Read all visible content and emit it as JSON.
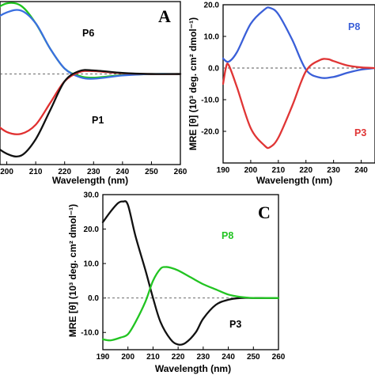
{
  "chart_data": [
    {
      "panel": "A",
      "type": "line",
      "xlabel": "Wavelength (nm)",
      "ylabel": "",
      "xlim": [
        190,
        260
      ],
      "ylim": [
        -25,
        20
      ],
      "x_ticks": [
        "200",
        "210",
        "220",
        "230",
        "240",
        "250",
        "260"
      ],
      "y_ticks": [],
      "zero_line": true,
      "series": [
        {
          "name": "P6",
          "color": "#1fc41f",
          "x": [
            190,
            195,
            200,
            205,
            210,
            215,
            220,
            225,
            230,
            240,
            250,
            260
          ],
          "y": [
            12,
            17,
            19.5,
            18.8,
            14,
            7,
            1.5,
            -0.5,
            -1,
            -0.3,
            0,
            0
          ]
        },
        {
          "name": "",
          "color": "#3a6fe0",
          "x": [
            190,
            195,
            200,
            205,
            210,
            215,
            220,
            225,
            230,
            240,
            250,
            260
          ],
          "y": [
            10,
            14.5,
            17,
            17.5,
            14,
            7,
            1.5,
            -0.8,
            -1.3,
            -0.4,
            0,
            0
          ]
        },
        {
          "name": "",
          "color": "#e03030",
          "x": [
            190,
            195,
            200,
            205,
            210,
            215,
            220,
            225,
            230,
            240,
            250,
            260
          ],
          "y": [
            -9,
            -13,
            -16,
            -16.5,
            -14,
            -8,
            -2,
            0.5,
            0.8,
            0.2,
            0,
            0
          ]
        },
        {
          "name": "P1",
          "color": "#111111",
          "x": [
            190,
            195,
            200,
            205,
            210,
            215,
            220,
            225,
            230,
            240,
            250,
            260
          ],
          "y": [
            -14,
            -19,
            -22,
            -22.5,
            -18,
            -10,
            -2,
            0.8,
            1,
            0.3,
            0,
            0
          ]
        }
      ]
    },
    {
      "panel": "B",
      "type": "line",
      "xlabel": "Wavelength (nm)",
      "ylabel": "MRE [θ] (10³ deg. cm² dmol⁻¹)",
      "xlim": [
        190,
        245
      ],
      "ylim": [
        -30,
        20
      ],
      "x_ticks": [
        "190",
        "200",
        "210",
        "220",
        "230",
        "240"
      ],
      "y_ticks": [
        "20.0",
        "10.0",
        "0.0",
        "-10.0",
        "-20.0"
      ],
      "zero_line": true,
      "series": [
        {
          "name": "P8",
          "color": "#3a5fd8",
          "x": [
            190,
            192,
            195,
            200,
            205,
            207,
            210,
            215,
            220,
            225,
            230,
            235,
            240,
            245
          ],
          "y": [
            3,
            2,
            5,
            14,
            18.5,
            19,
            17,
            9,
            -0.5,
            -3,
            -2.8,
            -1.5,
            -0.5,
            0
          ]
        },
        {
          "name": "P3",
          "color": "#e03535",
          "x": [
            190,
            191,
            192,
            195,
            200,
            205,
            207,
            210,
            215,
            220,
            225,
            228,
            230,
            235,
            240,
            245
          ],
          "y": [
            -5,
            0,
            1,
            -6,
            -19,
            -24.5,
            -25,
            -22,
            -12,
            -1,
            2.5,
            2.8,
            2.2,
            0.8,
            0.2,
            0
          ]
        }
      ]
    },
    {
      "panel": "C",
      "type": "line",
      "xlabel": "Wavelength (nm)",
      "ylabel": "MRE [θ] (10³ deg. cm² dmol⁻¹)",
      "xlim": [
        190,
        260
      ],
      "ylim": [
        -15,
        30
      ],
      "x_ticks": [
        "190",
        "200",
        "210",
        "220",
        "230",
        "240",
        "250",
        "260"
      ],
      "y_ticks": [
        "30.0",
        "20.0",
        "10.0",
        "0.0",
        "-10.0"
      ],
      "zero_line": true,
      "series": [
        {
          "name": "P3",
          "color": "#111111",
          "x": [
            190,
            193,
            196,
            198,
            200,
            203,
            207,
            210,
            213,
            217,
            220,
            223,
            227,
            230,
            235,
            240,
            245,
            250,
            255,
            260
          ],
          "y": [
            22,
            25,
            27.5,
            28,
            27,
            18,
            8,
            0,
            -7,
            -12,
            -13.5,
            -13,
            -10,
            -6,
            -2,
            -0.5,
            0,
            0,
            0,
            0
          ]
        },
        {
          "name": "P8",
          "color": "#22c422",
          "x": [
            190,
            193,
            197,
            200,
            203,
            207,
            210,
            213,
            215,
            217,
            220,
            225,
            230,
            235,
            240,
            245,
            250,
            255,
            260
          ],
          "y": [
            -12,
            -12.3,
            -11.5,
            -10.5,
            -7,
            -1,
            5,
            8.5,
            9,
            8.8,
            8,
            6,
            4,
            2.5,
            1,
            0.3,
            0,
            0,
            0
          ]
        }
      ]
    }
  ]
}
